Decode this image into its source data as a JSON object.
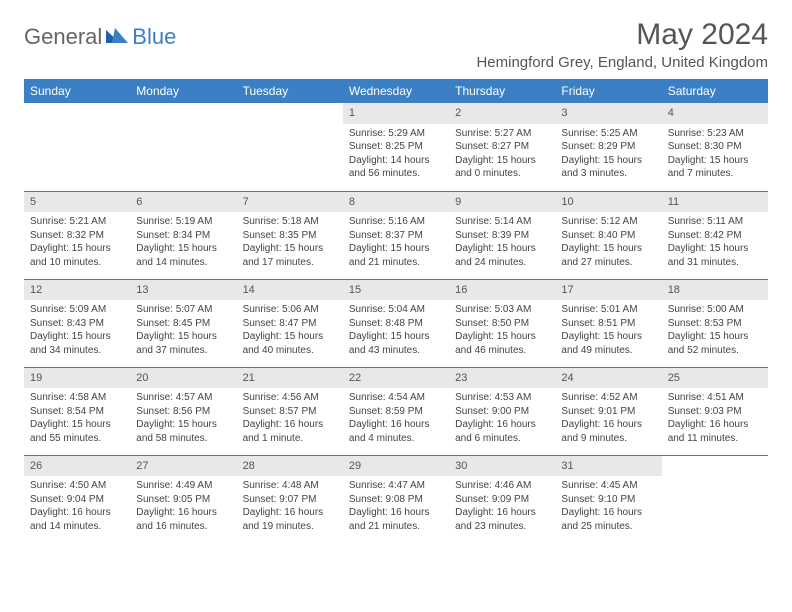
{
  "brand": {
    "general": "General",
    "blue": "Blue"
  },
  "title": "May 2024",
  "location": "Hemingford Grey, England, United Kingdom",
  "colors": {
    "accent": "#3b7fc4",
    "header_text": "#ffffff",
    "daynum_bg": "#e8e8e8",
    "body_text": "#444444"
  },
  "weekdays": [
    "Sunday",
    "Monday",
    "Tuesday",
    "Wednesday",
    "Thursday",
    "Friday",
    "Saturday"
  ],
  "weeks": [
    [
      null,
      null,
      null,
      {
        "n": "1",
        "sr": "Sunrise: 5:29 AM",
        "ss": "Sunset: 8:25 PM",
        "dl": "Daylight: 14 hours and 56 minutes."
      },
      {
        "n": "2",
        "sr": "Sunrise: 5:27 AM",
        "ss": "Sunset: 8:27 PM",
        "dl": "Daylight: 15 hours and 0 minutes."
      },
      {
        "n": "3",
        "sr": "Sunrise: 5:25 AM",
        "ss": "Sunset: 8:29 PM",
        "dl": "Daylight: 15 hours and 3 minutes."
      },
      {
        "n": "4",
        "sr": "Sunrise: 5:23 AM",
        "ss": "Sunset: 8:30 PM",
        "dl": "Daylight: 15 hours and 7 minutes."
      }
    ],
    [
      {
        "n": "5",
        "sr": "Sunrise: 5:21 AM",
        "ss": "Sunset: 8:32 PM",
        "dl": "Daylight: 15 hours and 10 minutes."
      },
      {
        "n": "6",
        "sr": "Sunrise: 5:19 AM",
        "ss": "Sunset: 8:34 PM",
        "dl": "Daylight: 15 hours and 14 minutes."
      },
      {
        "n": "7",
        "sr": "Sunrise: 5:18 AM",
        "ss": "Sunset: 8:35 PM",
        "dl": "Daylight: 15 hours and 17 minutes."
      },
      {
        "n": "8",
        "sr": "Sunrise: 5:16 AM",
        "ss": "Sunset: 8:37 PM",
        "dl": "Daylight: 15 hours and 21 minutes."
      },
      {
        "n": "9",
        "sr": "Sunrise: 5:14 AM",
        "ss": "Sunset: 8:39 PM",
        "dl": "Daylight: 15 hours and 24 minutes."
      },
      {
        "n": "10",
        "sr": "Sunrise: 5:12 AM",
        "ss": "Sunset: 8:40 PM",
        "dl": "Daylight: 15 hours and 27 minutes."
      },
      {
        "n": "11",
        "sr": "Sunrise: 5:11 AM",
        "ss": "Sunset: 8:42 PM",
        "dl": "Daylight: 15 hours and 31 minutes."
      }
    ],
    [
      {
        "n": "12",
        "sr": "Sunrise: 5:09 AM",
        "ss": "Sunset: 8:43 PM",
        "dl": "Daylight: 15 hours and 34 minutes."
      },
      {
        "n": "13",
        "sr": "Sunrise: 5:07 AM",
        "ss": "Sunset: 8:45 PM",
        "dl": "Daylight: 15 hours and 37 minutes."
      },
      {
        "n": "14",
        "sr": "Sunrise: 5:06 AM",
        "ss": "Sunset: 8:47 PM",
        "dl": "Daylight: 15 hours and 40 minutes."
      },
      {
        "n": "15",
        "sr": "Sunrise: 5:04 AM",
        "ss": "Sunset: 8:48 PM",
        "dl": "Daylight: 15 hours and 43 minutes."
      },
      {
        "n": "16",
        "sr": "Sunrise: 5:03 AM",
        "ss": "Sunset: 8:50 PM",
        "dl": "Daylight: 15 hours and 46 minutes."
      },
      {
        "n": "17",
        "sr": "Sunrise: 5:01 AM",
        "ss": "Sunset: 8:51 PM",
        "dl": "Daylight: 15 hours and 49 minutes."
      },
      {
        "n": "18",
        "sr": "Sunrise: 5:00 AM",
        "ss": "Sunset: 8:53 PM",
        "dl": "Daylight: 15 hours and 52 minutes."
      }
    ],
    [
      {
        "n": "19",
        "sr": "Sunrise: 4:58 AM",
        "ss": "Sunset: 8:54 PM",
        "dl": "Daylight: 15 hours and 55 minutes."
      },
      {
        "n": "20",
        "sr": "Sunrise: 4:57 AM",
        "ss": "Sunset: 8:56 PM",
        "dl": "Daylight: 15 hours and 58 minutes."
      },
      {
        "n": "21",
        "sr": "Sunrise: 4:56 AM",
        "ss": "Sunset: 8:57 PM",
        "dl": "Daylight: 16 hours and 1 minute."
      },
      {
        "n": "22",
        "sr": "Sunrise: 4:54 AM",
        "ss": "Sunset: 8:59 PM",
        "dl": "Daylight: 16 hours and 4 minutes."
      },
      {
        "n": "23",
        "sr": "Sunrise: 4:53 AM",
        "ss": "Sunset: 9:00 PM",
        "dl": "Daylight: 16 hours and 6 minutes."
      },
      {
        "n": "24",
        "sr": "Sunrise: 4:52 AM",
        "ss": "Sunset: 9:01 PM",
        "dl": "Daylight: 16 hours and 9 minutes."
      },
      {
        "n": "25",
        "sr": "Sunrise: 4:51 AM",
        "ss": "Sunset: 9:03 PM",
        "dl": "Daylight: 16 hours and 11 minutes."
      }
    ],
    [
      {
        "n": "26",
        "sr": "Sunrise: 4:50 AM",
        "ss": "Sunset: 9:04 PM",
        "dl": "Daylight: 16 hours and 14 minutes."
      },
      {
        "n": "27",
        "sr": "Sunrise: 4:49 AM",
        "ss": "Sunset: 9:05 PM",
        "dl": "Daylight: 16 hours and 16 minutes."
      },
      {
        "n": "28",
        "sr": "Sunrise: 4:48 AM",
        "ss": "Sunset: 9:07 PM",
        "dl": "Daylight: 16 hours and 19 minutes."
      },
      {
        "n": "29",
        "sr": "Sunrise: 4:47 AM",
        "ss": "Sunset: 9:08 PM",
        "dl": "Daylight: 16 hours and 21 minutes."
      },
      {
        "n": "30",
        "sr": "Sunrise: 4:46 AM",
        "ss": "Sunset: 9:09 PM",
        "dl": "Daylight: 16 hours and 23 minutes."
      },
      {
        "n": "31",
        "sr": "Sunrise: 4:45 AM",
        "ss": "Sunset: 9:10 PM",
        "dl": "Daylight: 16 hours and 25 minutes."
      },
      null
    ]
  ]
}
